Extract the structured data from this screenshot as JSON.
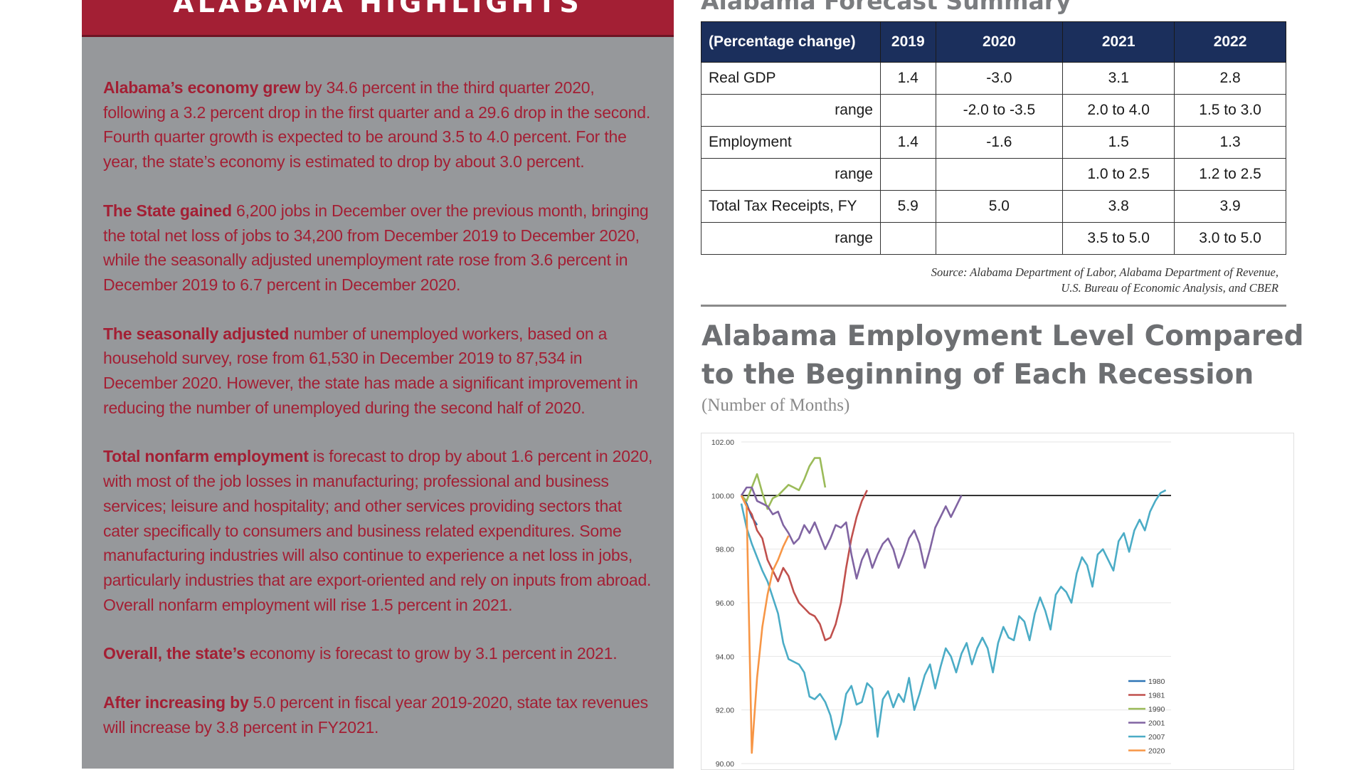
{
  "left": {
    "banner_title": "ALABAMA HIGHLIGHTS",
    "paragraphs": [
      {
        "lead": "Alabama’s economy grew",
        "text": " by 34.6 percent in the third quarter 2020, following a 3.2 percent drop in the first quarter and a 29.6 drop in the second.  Fourth quarter growth is expected to be around 3.5 to 4.0 percent.  For the year, the state’s economy is estimated to drop by about 3.0 percent."
      },
      {
        "lead": "The State gained",
        "text": " 6,200 jobs in December over the previous month, bringing the total net loss of jobs to 34,200 from December 2019 to December 2020, while the seasonally adjusted unemployment rate rose from 3.6 percent in December 2019 to 6.7 percent in December 2020."
      },
      {
        "lead": "The seasonally adjusted",
        "text": " number of unemployed workers, based on a household survey, rose from 61,530 in December 2019 to 87,534 in December 2020.  However, the state has made a significant improvement in reducing the number of unemployed during the second half of 2020."
      },
      {
        "lead": "Total nonfarm employment",
        "text": " is forecast to drop by about 1.6 percent in 2020, with most of the job losses in manufacturing; professional and business services; leisure and hospitality; and other services providing sectors that cater specifically to consumers and business related expenditures. Some manufacturing industries will also continue to experience a net loss in jobs, particularly industries that are export-oriented and rely on inputs from abroad. Overall nonfarm employment will rise 1.5 percent in 2021."
      },
      {
        "lead": "Overall, the state’s",
        "text": " economy is forecast to grow by 3.1 percent in 2021."
      },
      {
        "lead": "After increasing by",
        "text": " 5.0 percent in fiscal year 2019-2020, state tax revenues will increase by 3.8 percent in FY2021."
      }
    ]
  },
  "forecast": {
    "title": "Alabama Forecast Summary",
    "header": [
      "(Percentage change)",
      "2019",
      "2020",
      "2021",
      "2022"
    ],
    "rows": [
      {
        "label": "Real GDP",
        "align": "left",
        "values": [
          "1.4",
          "-3.0",
          "3.1",
          "2.8"
        ]
      },
      {
        "label": "range",
        "align": "right",
        "values": [
          "",
          "-2.0 to -3.5",
          "2.0 to 4.0",
          "1.5 to 3.0"
        ]
      },
      {
        "label": "Employment",
        "align": "left",
        "values": [
          "1.4",
          "-1.6",
          "1.5",
          "1.3"
        ]
      },
      {
        "label": "range",
        "align": "right",
        "values": [
          "",
          "",
          "1.0 to 2.5",
          "1.2 to 2.5"
        ]
      },
      {
        "label": "Total Tax Receipts, FY",
        "align": "left",
        "values": [
          "5.9",
          "5.0",
          "3.8",
          "3.9"
        ]
      },
      {
        "label": "range",
        "align": "right",
        "values": [
          "",
          "",
          "3.5 to 5.0",
          "3.0 to 5.0"
        ]
      }
    ],
    "source_line1": "Source:  Alabama Department of Labor, Alabama Department of Revenue,",
    "source_line2": "U.S. Bureau of Economic Analysis, and CBER"
  },
  "chart_heading": {
    "title": "Alabama Employment Level Compared to the Beginning of Each Recession",
    "subtitle": "(Number of Months)"
  },
  "chart_data": {
    "type": "line",
    "title": "Alabama Employment Level Compared to the Beginning of Each Recession",
    "subtitle": "(Number of Months)",
    "xlabel": "",
    "ylabel": "",
    "xlim": [
      0,
      82
    ],
    "ylim": [
      90,
      102
    ],
    "yticks": [
      "90.00",
      "92.00",
      "94.00",
      "96.00",
      "98.00",
      "100.00",
      "102.00"
    ],
    "reference_line": 100,
    "grid": true,
    "legend_position": "bottom-right",
    "series": [
      {
        "name": "1980",
        "color": "#2e75b6",
        "x": [
          0,
          1,
          2,
          3
        ],
        "y": [
          100.0,
          99.7,
          99.2,
          98.9
        ]
      },
      {
        "name": "1981",
        "color": "#c0504d",
        "x": [
          0,
          1,
          2,
          3,
          4,
          5,
          6,
          7,
          8,
          9,
          10,
          11,
          12,
          13,
          14,
          15,
          16,
          17,
          18,
          19,
          20,
          21,
          22,
          23,
          24
        ],
        "y": [
          100.0,
          99.6,
          99.3,
          98.7,
          98.4,
          97.6,
          97.2,
          96.8,
          97.3,
          97.0,
          96.4,
          96.0,
          95.8,
          95.6,
          95.5,
          95.2,
          94.6,
          94.7,
          95.2,
          96.0,
          97.3,
          98.4,
          99.2,
          99.8,
          100.2
        ]
      },
      {
        "name": "1990",
        "color": "#9bbb59",
        "x": [
          0,
          1,
          2,
          3,
          4,
          5,
          6,
          7,
          8,
          9,
          10,
          11,
          12,
          13,
          14,
          15,
          16
        ],
        "y": [
          100.0,
          99.8,
          100.3,
          100.8,
          100.1,
          99.5,
          99.9,
          100.0,
          100.2,
          100.4,
          100.3,
          100.2,
          100.6,
          101.1,
          101.4,
          101.4,
          100.3
        ]
      },
      {
        "name": "2001",
        "color": "#8064a2",
        "x": [
          0,
          1,
          2,
          3,
          4,
          5,
          6,
          7,
          8,
          9,
          10,
          11,
          12,
          13,
          14,
          15,
          16,
          17,
          18,
          19,
          20,
          21,
          22,
          23,
          24,
          25,
          26,
          27,
          28,
          29,
          30,
          31,
          32,
          33,
          34,
          35,
          36,
          37,
          38,
          39,
          40,
          41,
          42
        ],
        "y": [
          100.0,
          100.3,
          100.3,
          99.8,
          99.7,
          99.6,
          99.3,
          99.4,
          98.9,
          98.6,
          98.2,
          98.4,
          98.9,
          98.6,
          99.0,
          98.5,
          98.0,
          98.4,
          98.9,
          98.8,
          99.0,
          97.8,
          96.9,
          97.6,
          98.0,
          97.3,
          97.8,
          98.2,
          98.4,
          98.0,
          97.3,
          97.8,
          98.4,
          98.7,
          98.2,
          97.3,
          98.0,
          98.8,
          99.2,
          99.6,
          99.2,
          99.6,
          100.0
        ]
      },
      {
        "name": "2007",
        "color": "#4bacc6",
        "x": [
          0,
          1,
          2,
          3,
          4,
          5,
          6,
          7,
          8,
          9,
          10,
          11,
          12,
          13,
          14,
          15,
          16,
          17,
          18,
          19,
          20,
          21,
          22,
          23,
          24,
          25,
          26,
          27,
          28,
          29,
          30,
          31,
          32,
          33,
          34,
          35,
          36,
          37,
          38,
          39,
          40,
          41,
          42,
          43,
          44,
          45,
          46,
          47,
          48,
          49,
          50,
          51,
          52,
          53,
          54,
          55,
          56,
          57,
          58,
          59,
          60,
          61,
          62,
          63,
          64,
          65,
          66,
          67,
          68,
          69,
          70,
          71,
          72,
          73,
          74,
          75,
          76,
          77,
          78,
          79,
          80,
          81
        ],
        "y": [
          99.7,
          98.8,
          98.2,
          97.7,
          97.2,
          96.8,
          96.2,
          95.6,
          94.5,
          93.9,
          93.8,
          93.7,
          93.4,
          92.5,
          92.4,
          92.6,
          92.3,
          91.8,
          90.9,
          91.5,
          92.6,
          92.9,
          92.2,
          92.3,
          93.0,
          92.8,
          91.0,
          92.4,
          92.7,
          92.1,
          92.6,
          92.3,
          93.2,
          92.0,
          92.6,
          93.3,
          93.7,
          92.8,
          93.6,
          94.3,
          94.0,
          93.4,
          94.1,
          94.5,
          93.7,
          94.3,
          94.7,
          94.3,
          93.4,
          94.5,
          95.1,
          94.7,
          94.6,
          95.5,
          95.3,
          94.6,
          95.6,
          96.2,
          95.7,
          95.0,
          96.3,
          96.6,
          96.4,
          96.0,
          97.1,
          97.7,
          97.4,
          96.6,
          97.8,
          98.0,
          97.6,
          97.2,
          98.3,
          98.6,
          97.9,
          98.7,
          99.1,
          98.7,
          99.4,
          99.8,
          100.1,
          100.2
        ]
      },
      {
        "name": "2020",
        "color": "#f79646",
        "x": [
          0,
          1,
          2,
          3,
          4,
          5,
          6,
          7,
          8,
          9
        ],
        "y": [
          100.0,
          99.6,
          90.4,
          93.2,
          95.1,
          96.3,
          97.2,
          97.6,
          98.1,
          98.5
        ]
      }
    ]
  },
  "colors": {
    "banner_red": "#a31f34",
    "panel_gray": "#96989b",
    "table_header_navy": "#1b2f5c",
    "highlight_text": "#a31f34"
  }
}
